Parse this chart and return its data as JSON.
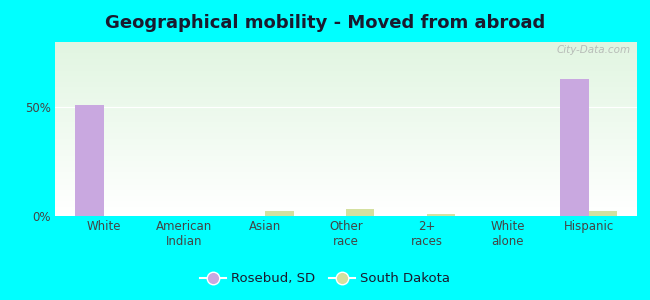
{
  "title": "Geographical mobility - Moved from abroad",
  "categories": [
    "White",
    "American\nIndian",
    "Asian",
    "Other\nrace",
    "2+\nraces",
    "White\nalone",
    "Hispanic"
  ],
  "rosebud_values": [
    51.0,
    0.0,
    0.0,
    0.0,
    0.0,
    0.0,
    63.0
  ],
  "sd_values": [
    0.0,
    0.0,
    2.5,
    3.0,
    1.0,
    0.0,
    2.5
  ],
  "rosebud_color": "#c9a8e0",
  "sd_color": "#d4e0a0",
  "ylim": [
    0,
    80
  ],
  "yticks": [
    0,
    50
  ],
  "ytick_labels": [
    "0%",
    "50%"
  ],
  "bar_width": 0.35,
  "outer_bg": "#00ffff",
  "legend_labels": [
    "Rosebud, SD",
    "South Dakota"
  ],
  "watermark": "City-Data.com",
  "title_fontsize": 13,
  "tick_fontsize": 8.5,
  "legend_fontsize": 9.5
}
